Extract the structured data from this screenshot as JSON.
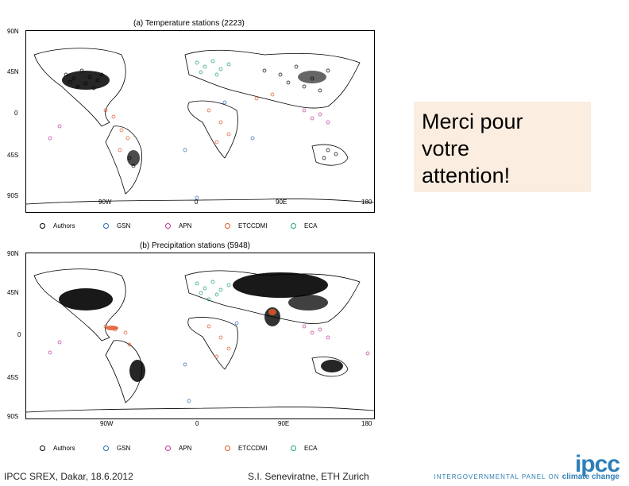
{
  "panels": [
    {
      "title": "(a) Temperature stations (2223)",
      "y_ticks": [
        "90N",
        "45N",
        "0",
        "45S",
        "90S"
      ],
      "x_ticks": [
        "90W",
        "0",
        "90E",
        "180"
      ]
    },
    {
      "title": "(b) Precipitation stations (5948)",
      "y_ticks": [
        "90N",
        "45N",
        "0",
        "45S",
        "90S"
      ],
      "x_ticks": [
        "90W",
        "0",
        "90E",
        "180"
      ]
    }
  ],
  "legend": [
    {
      "label": "Authors",
      "color": "#000000"
    },
    {
      "label": "GSN",
      "color": "#2b6cb0"
    },
    {
      "label": "APN",
      "color": "#c0399b"
    },
    {
      "label": "ETCCDMI",
      "color": "#e0572a"
    },
    {
      "label": "ECA",
      "color": "#1aa36b"
    }
  ],
  "note": {
    "line1": "Merci pour",
    "line2": "votre",
    "line3": "attention!"
  },
  "footer": {
    "left": "IPCC SREX, Dakar, 18.6.2012",
    "center": "S.I. Seneviratne, ETH Zurich"
  },
  "logo": {
    "mark": "ipcc",
    "sub_light": "INTERGOVERNMENTAL PANEL ON",
    "sub_bold": "climate change"
  },
  "colors": {
    "note_bg": "#fbeee0",
    "logo": "#2f7fb7"
  }
}
